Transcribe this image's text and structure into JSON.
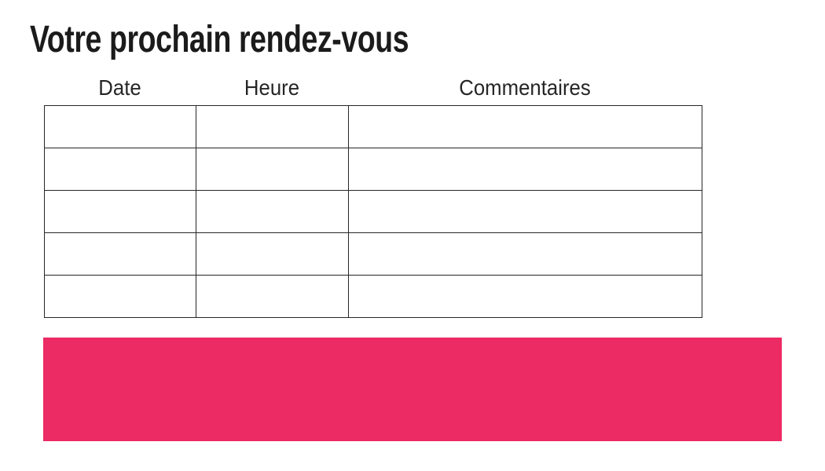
{
  "page": {
    "title": "Votre prochain rendez-vous"
  },
  "appointments_table": {
    "columns": [
      {
        "label": "Date"
      },
      {
        "label": "Heure"
      },
      {
        "label": "Commentaires"
      }
    ],
    "rows": [
      {
        "date": "",
        "heure": "",
        "commentaires": ""
      },
      {
        "date": "",
        "heure": "",
        "commentaires": ""
      },
      {
        "date": "",
        "heure": "",
        "commentaires": ""
      },
      {
        "date": "",
        "heure": "",
        "commentaires": ""
      },
      {
        "date": "",
        "heure": "",
        "commentaires": ""
      }
    ]
  },
  "colors": {
    "accent_pink": "#ec2a64",
    "table_border": "#262626",
    "title_text": "#1b1b1b",
    "header_text": "#262626",
    "background": "#ffffff"
  }
}
